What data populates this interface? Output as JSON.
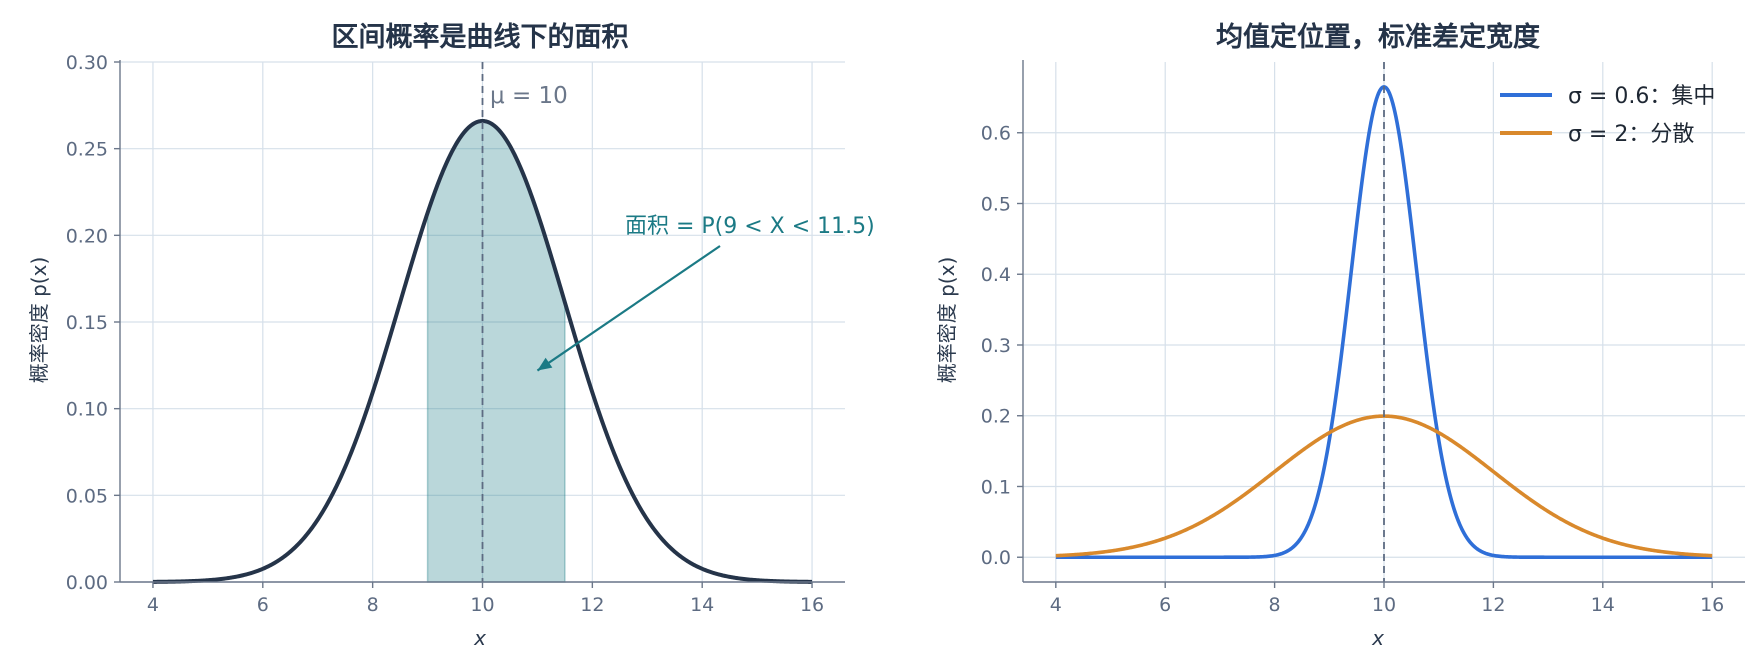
{
  "chart_data": [
    {
      "type": "area",
      "title": "区间概率是曲线下的面积",
      "xlabel": "x",
      "ylabel": "概率密度 p(x)",
      "xlim": [
        3.4,
        16.6
      ],
      "ylim": [
        0,
        0.3
      ],
      "xticks": [
        4,
        6,
        8,
        10,
        12,
        14,
        16
      ],
      "yticks": [
        0.0,
        0.05,
        0.1,
        0.15,
        0.2,
        0.25,
        0.3
      ],
      "ytick_labels": [
        "0.00",
        "0.05",
        "0.10",
        "0.15",
        "0.20",
        "0.25",
        "0.30"
      ],
      "grid": true,
      "series": [
        {
          "distribution": "normal",
          "mean": 10,
          "sd": 1.5,
          "x_range": [
            4,
            16
          ],
          "color": "#253449"
        }
      ],
      "shaded_region": {
        "from": 9,
        "to": 11.5,
        "color": "#1b7a85"
      },
      "mean_line": {
        "x": 10,
        "label": "μ = 10"
      },
      "annotation": {
        "text": "面积 = P(9 < X < 11.5)",
        "target": [
          11,
          0.122
        ],
        "color": "#1b7a85"
      }
    },
    {
      "type": "line",
      "title": "均值定位置，标准差定宽度",
      "xlabel": "x",
      "ylabel": "概率密度 p(x)",
      "xlim": [
        3.4,
        16.6
      ],
      "ylim": [
        -0.035,
        0.7
      ],
      "xticks": [
        4,
        6,
        8,
        10,
        12,
        14,
        16
      ],
      "yticks": [
        0.0,
        0.1,
        0.2,
        0.3,
        0.4,
        0.5,
        0.6
      ],
      "ytick_labels": [
        "0.0",
        "0.1",
        "0.2",
        "0.3",
        "0.4",
        "0.5",
        "0.6"
      ],
      "grid": true,
      "legend_position": "top-right",
      "series": [
        {
          "name": "σ = 0.6：集中",
          "distribution": "normal",
          "mean": 10,
          "sd": 0.6,
          "x_range": [
            4,
            16
          ],
          "color": "#2f6fd8"
        },
        {
          "name": "σ = 2：分散",
          "distribution": "normal",
          "mean": 10,
          "sd": 2,
          "x_range": [
            4,
            16
          ],
          "color": "#d9892c"
        }
      ],
      "mean_line": {
        "x": 10
      }
    }
  ]
}
